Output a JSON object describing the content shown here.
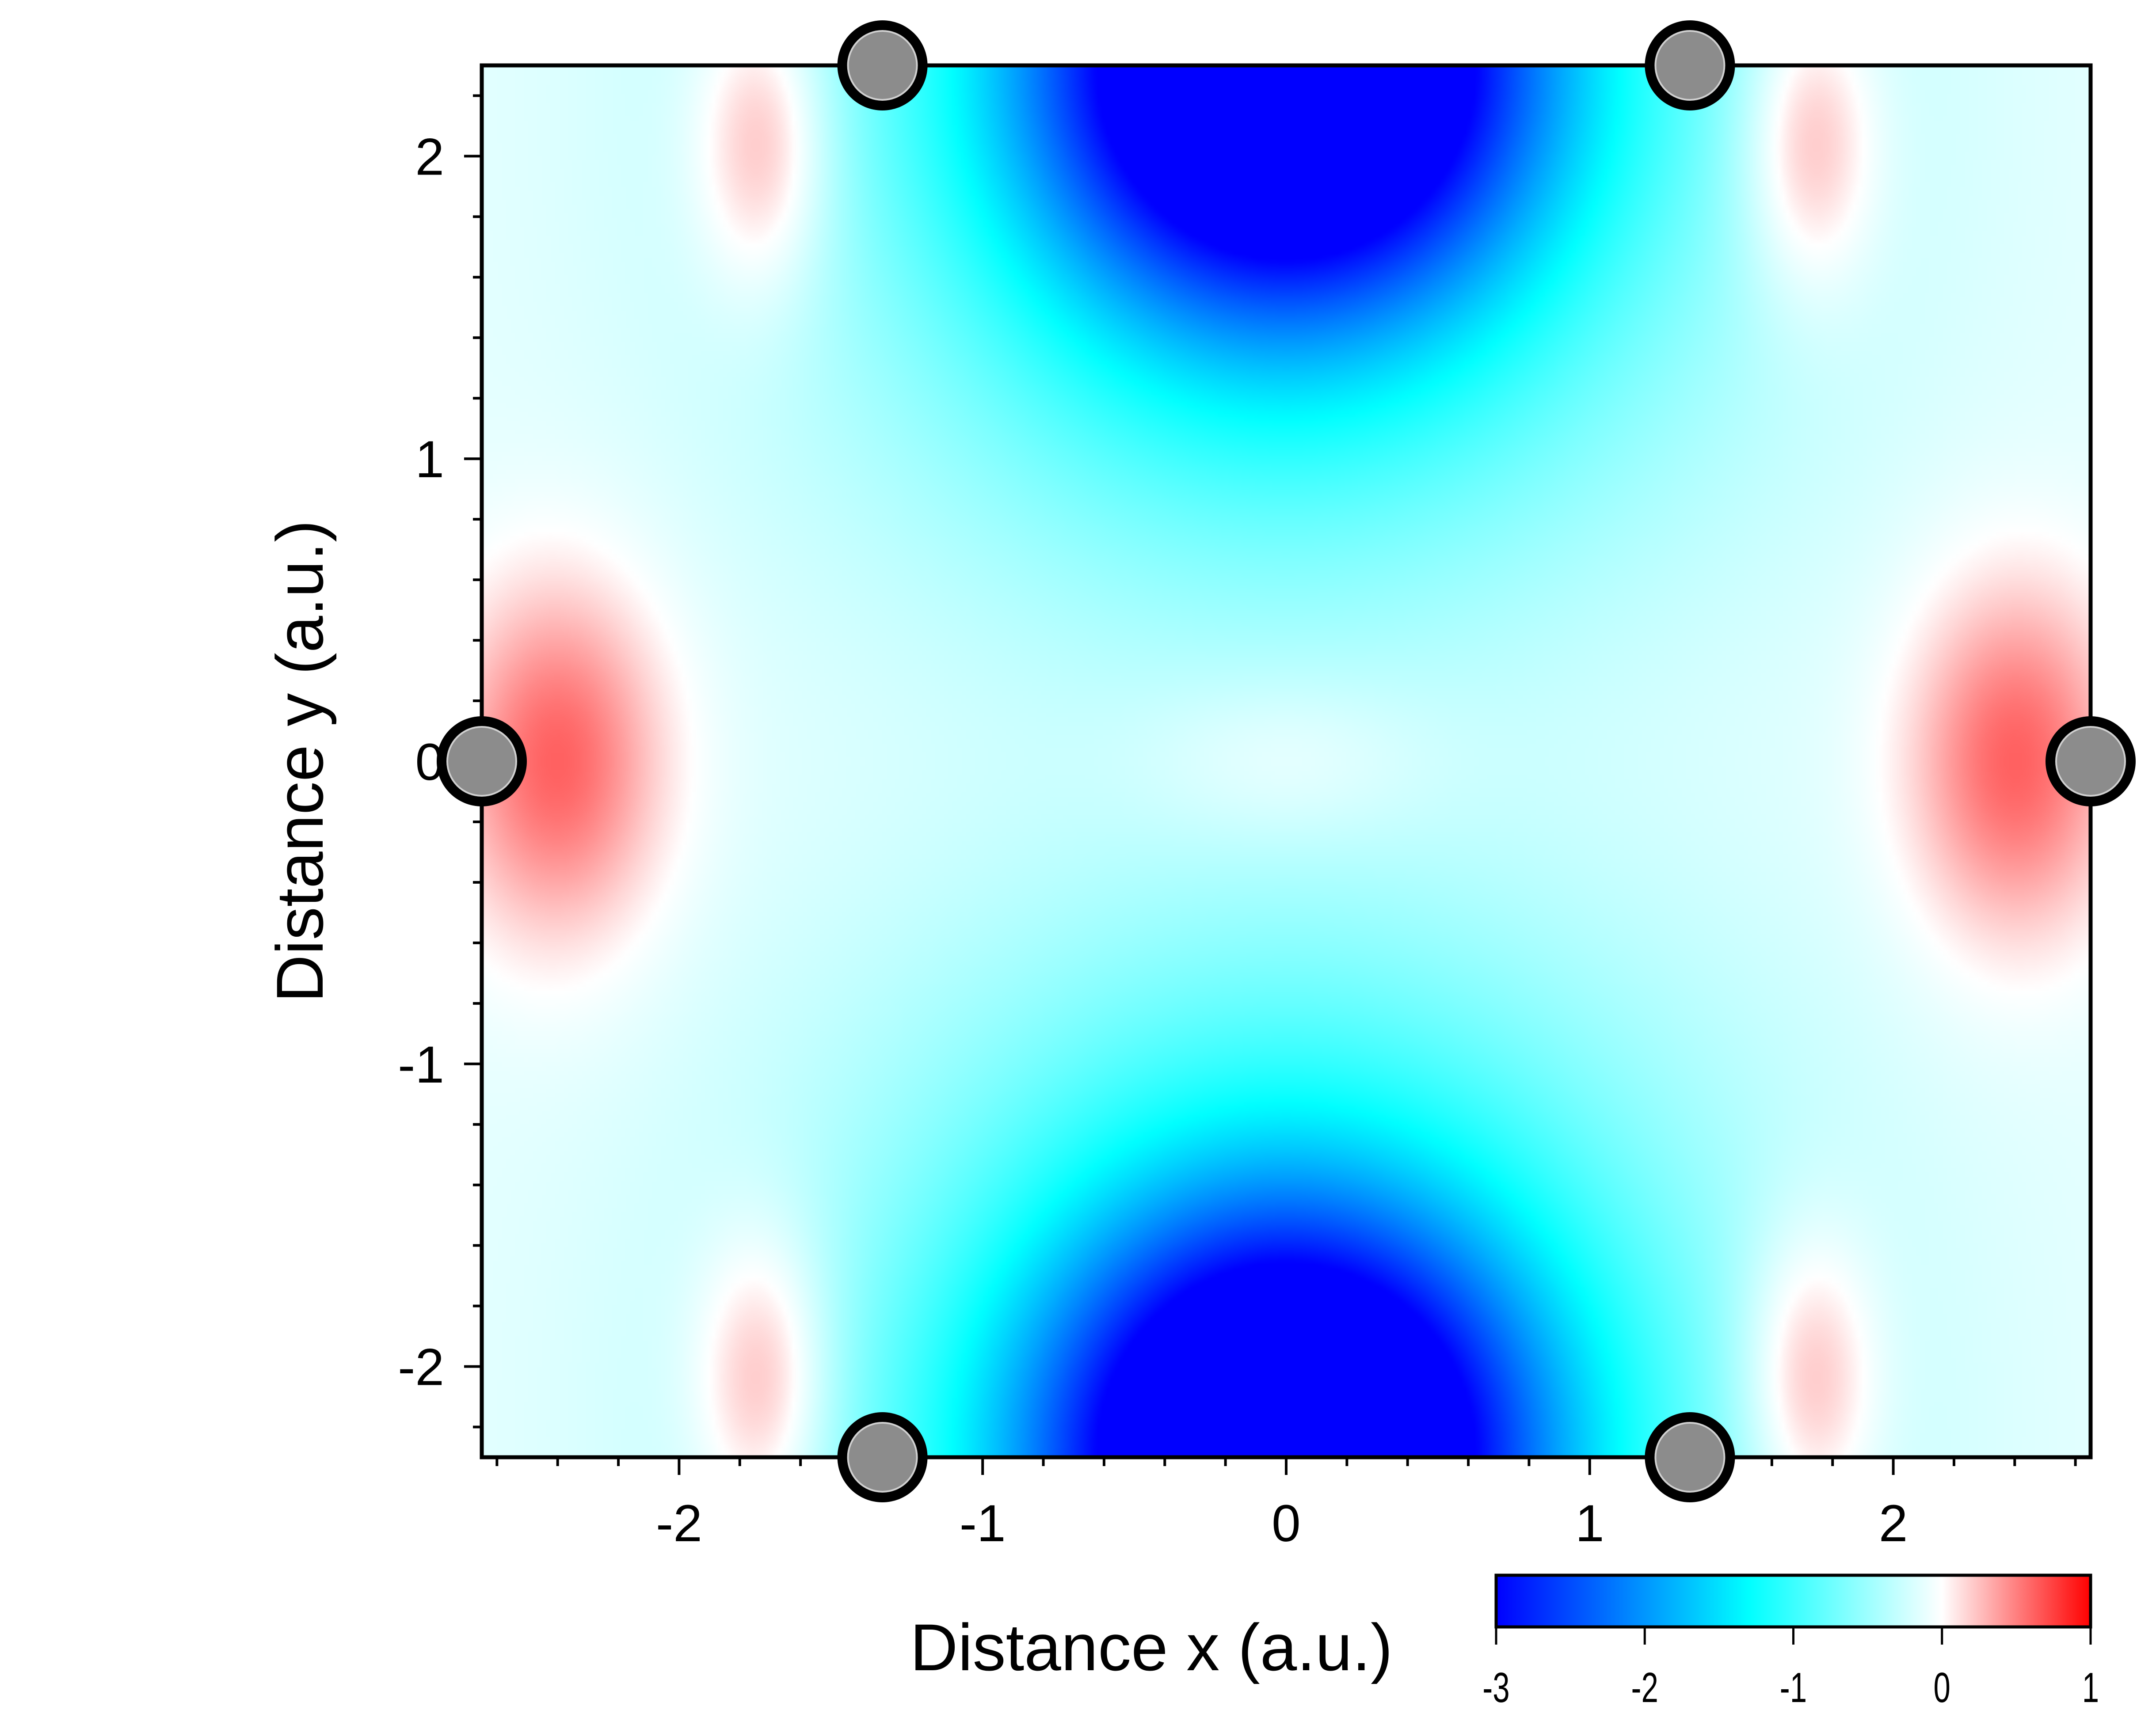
{
  "chart_data": {
    "type": "heatmap",
    "title": "",
    "xlabel": "Distance x (a.u.)",
    "ylabel": "Distance y (a.u.)",
    "xlim": [
      -2.65,
      2.65
    ],
    "ylim": [
      -2.3,
      2.3
    ],
    "x_ticks": [
      -2,
      -1,
      0,
      1,
      2
    ],
    "x_tick_labels": [
      "-2",
      "-1",
      "0",
      "1",
      "2"
    ],
    "y_ticks": [
      -2,
      -1,
      0,
      1,
      2
    ],
    "y_tick_labels": [
      "-2",
      "-1",
      "0",
      "1",
      "2"
    ],
    "grid": false,
    "colorbar": {
      "range": [
        -3,
        1
      ],
      "ticks": [
        -3,
        -2,
        -1,
        0,
        1
      ],
      "tick_labels": [
        "-3",
        "-2",
        "-1",
        "0",
        "1"
      ],
      "placement": "bottom-right",
      "colors": [
        {
          "value": -3,
          "color": "#0000ff"
        },
        {
          "value": -1.3,
          "color": "#00ffff"
        },
        {
          "value": 0,
          "color": "#ffffff"
        },
        {
          "value": 1,
          "color": "#ff0000"
        }
      ]
    },
    "atoms": [
      {
        "x": -1.33,
        "y": 2.3
      },
      {
        "x": 1.33,
        "y": 2.3
      },
      {
        "x": -2.65,
        "y": 0
      },
      {
        "x": 2.65,
        "y": 0
      },
      {
        "x": -1.33,
        "y": -2.3
      },
      {
        "x": 1.33,
        "y": -2.3
      }
    ],
    "atom_color": "#8c8c8c"
  }
}
